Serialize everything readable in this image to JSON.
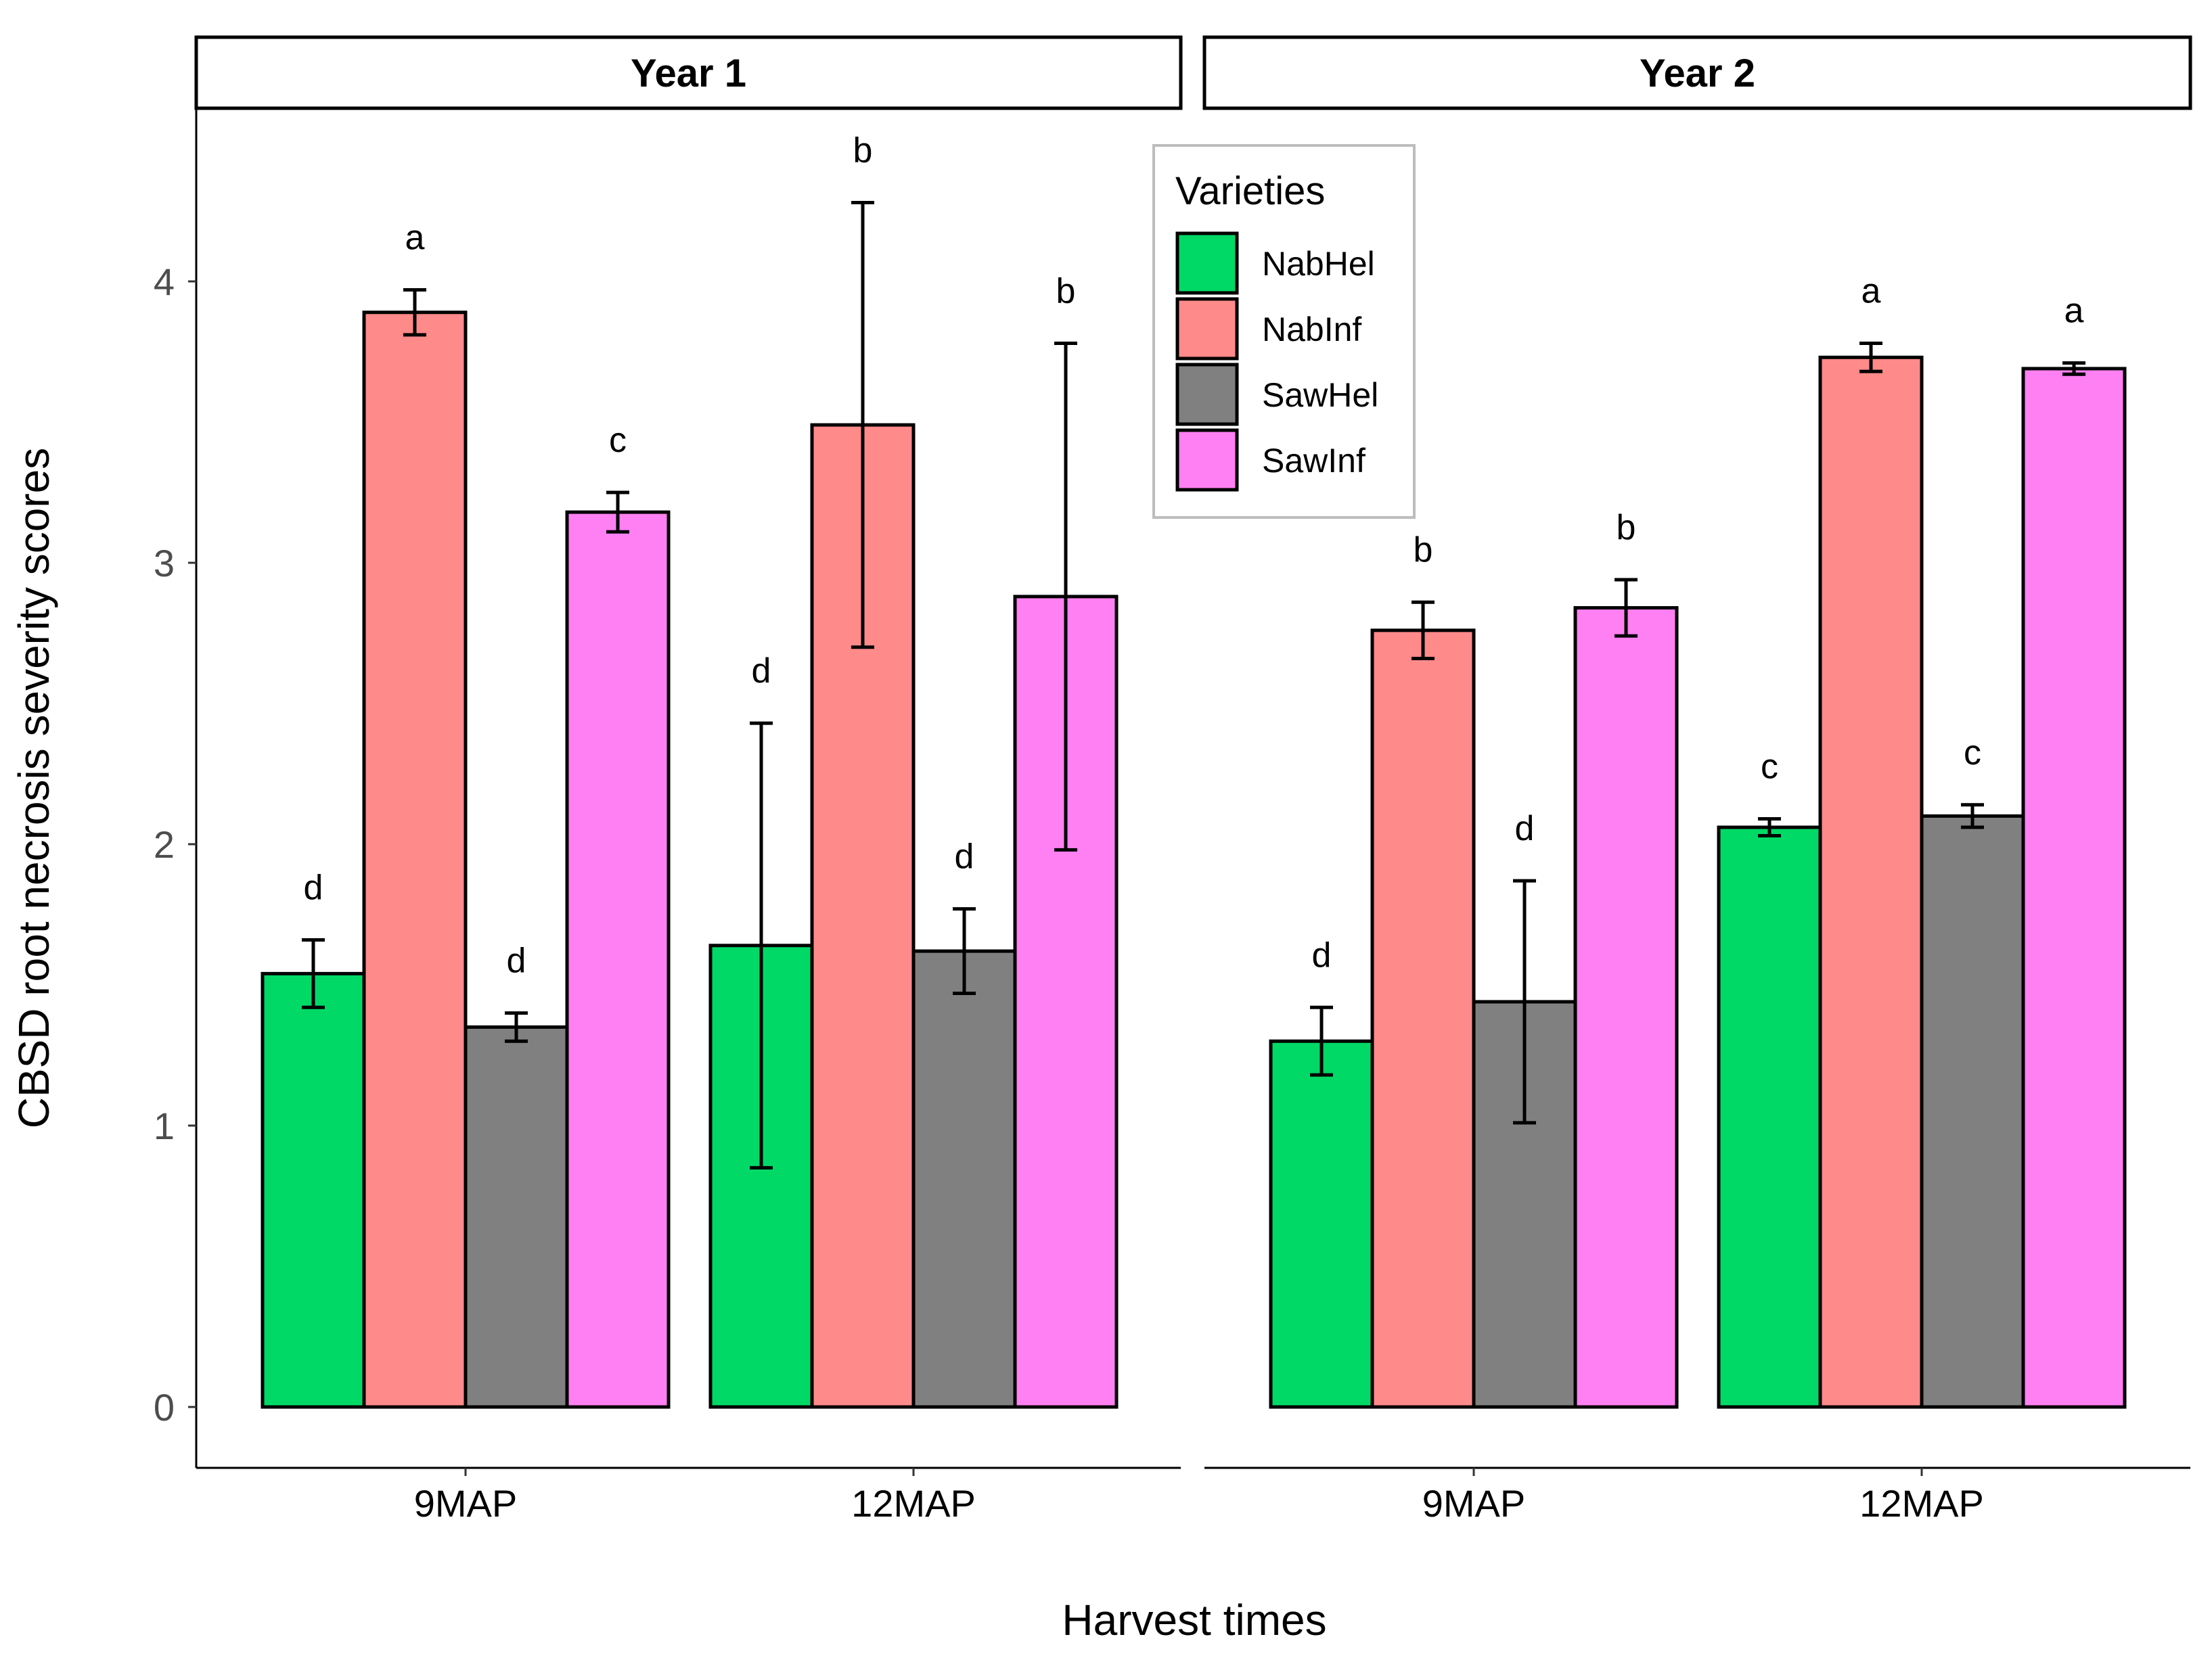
{
  "chart_data": {
    "type": "bar",
    "ylabel": "CBSD root necrosis severity scores",
    "xlabel": "Harvest times",
    "ylim": [
      0,
      4.5
    ],
    "yticks": [
      0,
      1,
      2,
      3,
      4
    ],
    "legend": {
      "title": "Varieties",
      "placement": "top-center",
      "entries": [
        "NabHel",
        "NabInf",
        "SawHel",
        "SawInf"
      ]
    },
    "colors": {
      "NabHel": "#00D966",
      "NabInf": "#FF8A8A",
      "SawHel": "#808080",
      "SawInf": "#FF80F2"
    },
    "panels": [
      {
        "title": "Year 1",
        "categories": [
          "9MAP",
          "12MAP"
        ],
        "series": [
          {
            "name": "NabHel",
            "values": [
              1.54,
              1.64
            ],
            "errors": [
              0.12,
              0.79
            ],
            "letters": [
              "d",
              "d"
            ]
          },
          {
            "name": "NabInf",
            "values": [
              3.89,
              3.49
            ],
            "errors": [
              0.08,
              0.79
            ],
            "letters": [
              "a",
              "b"
            ]
          },
          {
            "name": "SawHel",
            "values": [
              1.35,
              1.62
            ],
            "errors": [
              0.05,
              0.15
            ],
            "letters": [
              "d",
              "d"
            ]
          },
          {
            "name": "SawInf",
            "values": [
              3.18,
              2.88
            ],
            "errors": [
              0.07,
              0.9
            ],
            "letters": [
              "c",
              "b"
            ]
          }
        ]
      },
      {
        "title": "Year 2",
        "categories": [
          "9MAP",
          "12MAP"
        ],
        "series": [
          {
            "name": "NabHel",
            "values": [
              1.3,
              2.06
            ],
            "errors": [
              0.12,
              0.03
            ],
            "letters": [
              "d",
              "c"
            ]
          },
          {
            "name": "NabInf",
            "values": [
              2.76,
              3.73
            ],
            "errors": [
              0.1,
              0.05
            ],
            "letters": [
              "b",
              "a"
            ]
          },
          {
            "name": "SawHel",
            "values": [
              1.44,
              2.1
            ],
            "errors": [
              0.43,
              0.04
            ],
            "letters": [
              "d",
              "c"
            ]
          },
          {
            "name": "SawInf",
            "values": [
              2.84,
              3.69
            ],
            "errors": [
              0.1,
              0.02
            ],
            "letters": [
              "b",
              "a"
            ]
          }
        ]
      }
    ]
  }
}
